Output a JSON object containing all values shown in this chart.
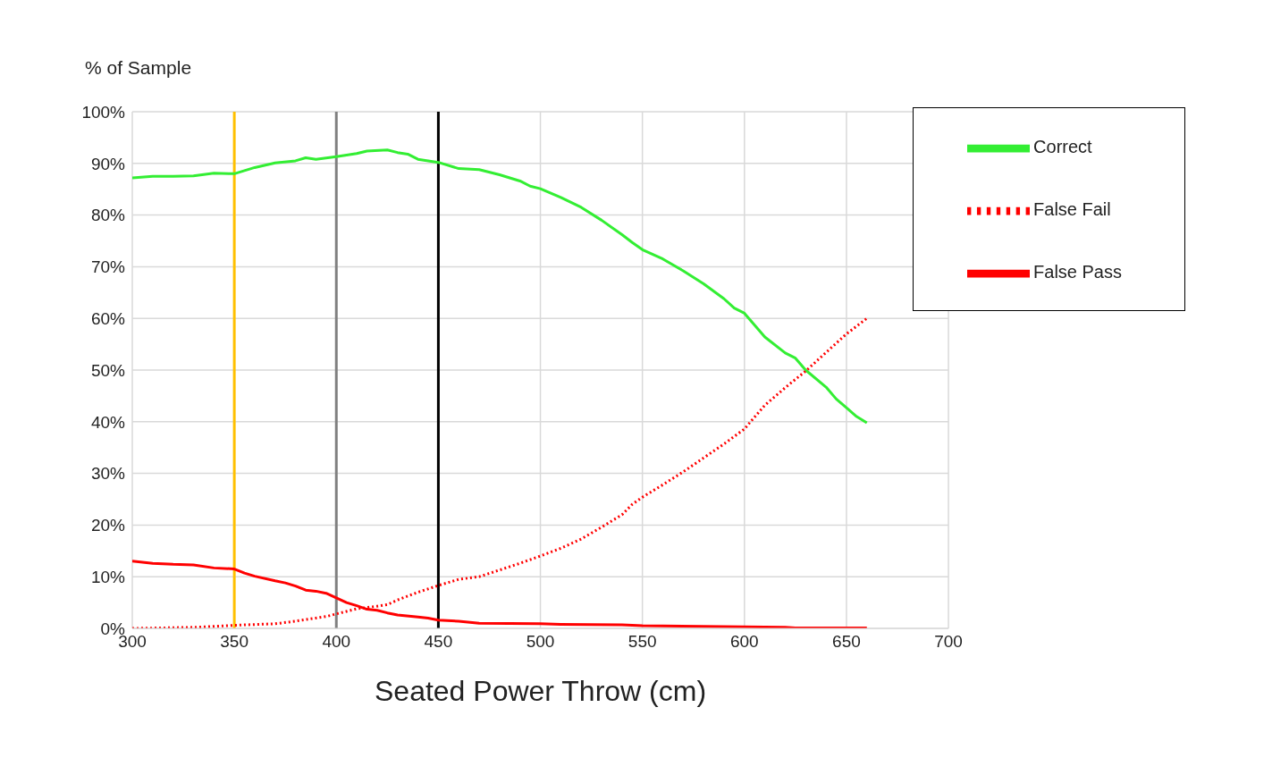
{
  "chart_data": {
    "type": "line",
    "xlabel": "Seated Power Throw (cm)",
    "ylabel": "% of Sample",
    "xlim": [
      300,
      700
    ],
    "xticks": [
      300,
      350,
      400,
      450,
      500,
      550,
      600,
      650,
      700
    ],
    "ylim": [
      0,
      100
    ],
    "yticks": [
      {
        "value": 0,
        "label": "0%"
      },
      {
        "value": 10,
        "label": "10%"
      },
      {
        "value": 20,
        "label": "20%"
      },
      {
        "value": 30,
        "label": "30%"
      },
      {
        "value": 40,
        "label": "40%"
      },
      {
        "value": 50,
        "label": "50%"
      },
      {
        "value": 60,
        "label": "60%"
      },
      {
        "value": 70,
        "label": "70%"
      },
      {
        "value": 80,
        "label": "80%"
      },
      {
        "value": 90,
        "label": "90%"
      },
      {
        "value": 100,
        "label": "100%"
      }
    ],
    "grid": true,
    "legend": "top right",
    "marker": "none",
    "series": [
      {
        "name": "Correct",
        "color": "#33ee33",
        "line_style": "solid",
        "x": [
          300,
          310,
          320,
          330,
          340,
          350,
          360,
          370,
          380,
          385,
          390,
          400,
          410,
          415,
          425,
          430,
          435,
          440,
          450,
          460,
          470,
          480,
          490,
          495,
          500,
          510,
          520,
          530,
          540,
          545,
          550,
          560,
          570,
          580,
          590,
          595,
          600,
          610,
          620,
          625,
          630,
          640,
          645,
          650,
          655,
          660
        ],
        "values": [
          87.2,
          87.5,
          87.5,
          87.6,
          88.1,
          88.0,
          89.2,
          90.1,
          90.5,
          91.1,
          90.8,
          91.3,
          91.9,
          92.4,
          92.6,
          92.1,
          91.8,
          90.8,
          90.2,
          89.0,
          88.8,
          87.8,
          86.6,
          85.6,
          85.1,
          83.4,
          81.5,
          79.0,
          76.2,
          74.7,
          73.3,
          71.5,
          69.2,
          66.7,
          63.8,
          62.0,
          61.0,
          56.4,
          53.3,
          52.3,
          50.0,
          46.7,
          44.4,
          42.7,
          41.0,
          39.8
        ]
      },
      {
        "name": "False Pass",
        "color": "#ff0000",
        "line_style": "solid",
        "x": [
          300,
          310,
          320,
          330,
          340,
          350,
          355,
          360,
          370,
          375,
          380,
          385,
          390,
          395,
          400,
          405,
          410,
          415,
          420,
          425,
          430,
          440,
          445,
          450,
          460,
          470,
          500,
          510,
          540,
          550,
          600,
          620,
          625,
          660
        ],
        "values": [
          13.0,
          12.6,
          12.4,
          12.3,
          11.7,
          11.5,
          10.7,
          10.1,
          9.2,
          8.8,
          8.2,
          7.4,
          7.2,
          6.8,
          5.9,
          5.0,
          4.4,
          3.7,
          3.5,
          3.0,
          2.6,
          2.2,
          2.0,
          1.6,
          1.4,
          1.0,
          0.9,
          0.8,
          0.7,
          0.5,
          0.3,
          0.2,
          0.1,
          0.1
        ]
      },
      {
        "name": "False Fail",
        "color": "#ff0000",
        "line_style": "dotted",
        "x": [
          300,
          330,
          340,
          350,
          370,
          380,
          390,
          395,
          400,
          410,
          420,
          425,
          430,
          440,
          450,
          460,
          470,
          480,
          490,
          500,
          510,
          520,
          530,
          540,
          545,
          550,
          560,
          570,
          580,
          590,
          600,
          610,
          620,
          630,
          640,
          650,
          660
        ],
        "values": [
          0,
          0.2,
          0.4,
          0.6,
          0.9,
          1.4,
          2.0,
          2.3,
          2.8,
          3.8,
          4.3,
          4.6,
          5.5,
          7.0,
          8.3,
          9.5,
          10.0,
          11.3,
          12.6,
          14.0,
          15.5,
          17.3,
          19.6,
          22.0,
          24.0,
          25.4,
          27.8,
          30.3,
          33.0,
          35.7,
          38.6,
          43.2,
          46.6,
          49.8,
          53.4,
          57.0,
          60.0
        ]
      }
    ],
    "ref_lines": [
      {
        "axis": "x",
        "value": 350,
        "color": "#ffc000"
      },
      {
        "axis": "x",
        "value": 400,
        "color": "#808080"
      },
      {
        "axis": "x",
        "value": 450,
        "color": "#000000"
      }
    ]
  }
}
